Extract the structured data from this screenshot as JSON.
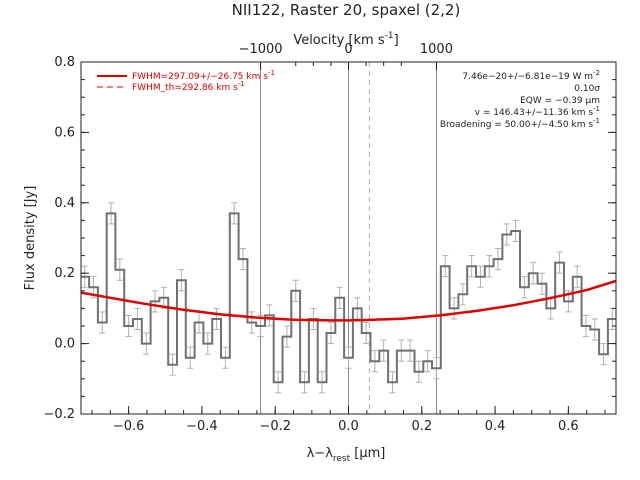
{
  "chart_data": {
    "type": "line",
    "title": "NII122, Raster 20, spaxel (2,2)",
    "top_axis_label": "Velocity [km s",
    "top_axis_label_sup": "-1",
    "top_axis_label_end": "]",
    "xlabel": "λ−λ",
    "xlabel_sub": "rest",
    "xlabel_end": " [μm]",
    "ylabel": "Flux density [Jy]",
    "xlim": [
      -0.73,
      0.73
    ],
    "ylim": [
      -0.2,
      0.8
    ],
    "x_ticks": [
      -0.6,
      -0.4,
      -0.2,
      0.0,
      0.2,
      0.4,
      0.6
    ],
    "x_tick_labels": [
      "−0.6",
      "−0.4",
      "−0.2",
      "0.0",
      "0.2",
      "0.4",
      "0.6"
    ],
    "y_ticks": [
      -0.2,
      0.0,
      0.2,
      0.4,
      0.6,
      0.8
    ],
    "y_tick_labels": [
      "−0.2",
      "0.0",
      "0.2",
      "0.4",
      "0.6",
      "0.8"
    ],
    "top_ticks_x": [
      -0.24,
      0.0,
      0.24
    ],
    "top_tick_labels": [
      "−1000",
      "0",
      "1000"
    ],
    "vertical_lines_solid": [
      -0.24,
      0.0,
      0.24
    ],
    "vertical_line_dashed": 0.057,
    "legend": [
      {
        "label": "FWHM=297.09+/−26.75 km s",
        "sup": "-1",
        "style": "solid",
        "color": "#dd0000"
      },
      {
        "label": "FWHM_th=292.86 km s",
        "sup": "-1",
        "style": "dashed",
        "color": "#dd0000"
      }
    ],
    "annotations": [
      {
        "text": "7.46e−20+/−6.81e−19 W m",
        "sup": "-2"
      },
      {
        "text": "0.10σ",
        "sup": ""
      },
      {
        "text": "EQW = −0.39 μm",
        "sup": ""
      },
      {
        "text": "v = 146.43+/−11.36 km s",
        "sup": "-1"
      },
      {
        "text": "Broadening = 50.00+/−4.50 km s",
        "sup": "-1"
      }
    ],
    "colors": {
      "data": "#707070",
      "fit": "#dd0000",
      "lines": "#888888",
      "errbar": "#b0b0b0"
    },
    "series": [
      {
        "type": "step",
        "x": [
          -0.72,
          -0.696,
          -0.672,
          -0.648,
          -0.624,
          -0.6,
          -0.576,
          -0.552,
          -0.528,
          -0.504,
          -0.48,
          -0.456,
          -0.432,
          -0.408,
          -0.384,
          -0.36,
          -0.336,
          -0.312,
          -0.288,
          -0.264,
          -0.24,
          -0.216,
          -0.192,
          -0.168,
          -0.144,
          -0.12,
          -0.096,
          -0.072,
          -0.048,
          -0.024,
          0.0,
          0.024,
          0.048,
          0.072,
          0.096,
          0.12,
          0.144,
          0.168,
          0.192,
          0.216,
          0.24,
          0.264,
          0.288,
          0.312,
          0.336,
          0.36,
          0.384,
          0.408,
          0.432,
          0.456,
          0.48,
          0.504,
          0.528,
          0.552,
          0.576,
          0.6,
          0.624,
          0.648,
          0.672,
          0.696,
          0.72
        ],
        "y": [
          0.19,
          0.16,
          0.06,
          0.37,
          0.21,
          0.05,
          0.07,
          0.0,
          0.12,
          0.13,
          -0.06,
          0.18,
          -0.04,
          0.06,
          0.0,
          0.07,
          -0.04,
          0.37,
          0.24,
          0.06,
          0.05,
          0.08,
          -0.11,
          0.02,
          0.15,
          -0.11,
          0.07,
          -0.11,
          0.03,
          0.13,
          -0.04,
          0.1,
          0.03,
          -0.05,
          -0.02,
          -0.11,
          -0.02,
          -0.02,
          -0.08,
          -0.05,
          -0.07,
          0.22,
          0.1,
          0.14,
          0.22,
          0.19,
          0.22,
          0.24,
          0.31,
          0.32,
          0.16,
          0.2,
          0.17,
          0.1,
          0.23,
          0.12,
          0.19,
          0.05,
          0.04,
          -0.03,
          0.07
        ],
        "err": 0.03
      },
      {
        "type": "line",
        "name": "FWHM=297.09+/−26.75 km s",
        "x": [
          -0.73,
          -0.65,
          -0.55,
          -0.45,
          -0.35,
          -0.25,
          -0.15,
          -0.05,
          0.0,
          0.05,
          0.15,
          0.25,
          0.35,
          0.45,
          0.55,
          0.65,
          0.73
        ],
        "y": [
          0.145,
          0.13,
          0.112,
          0.096,
          0.083,
          0.074,
          0.068,
          0.066,
          0.066,
          0.067,
          0.071,
          0.08,
          0.093,
          0.109,
          0.129,
          0.152,
          0.178
        ]
      }
    ]
  }
}
